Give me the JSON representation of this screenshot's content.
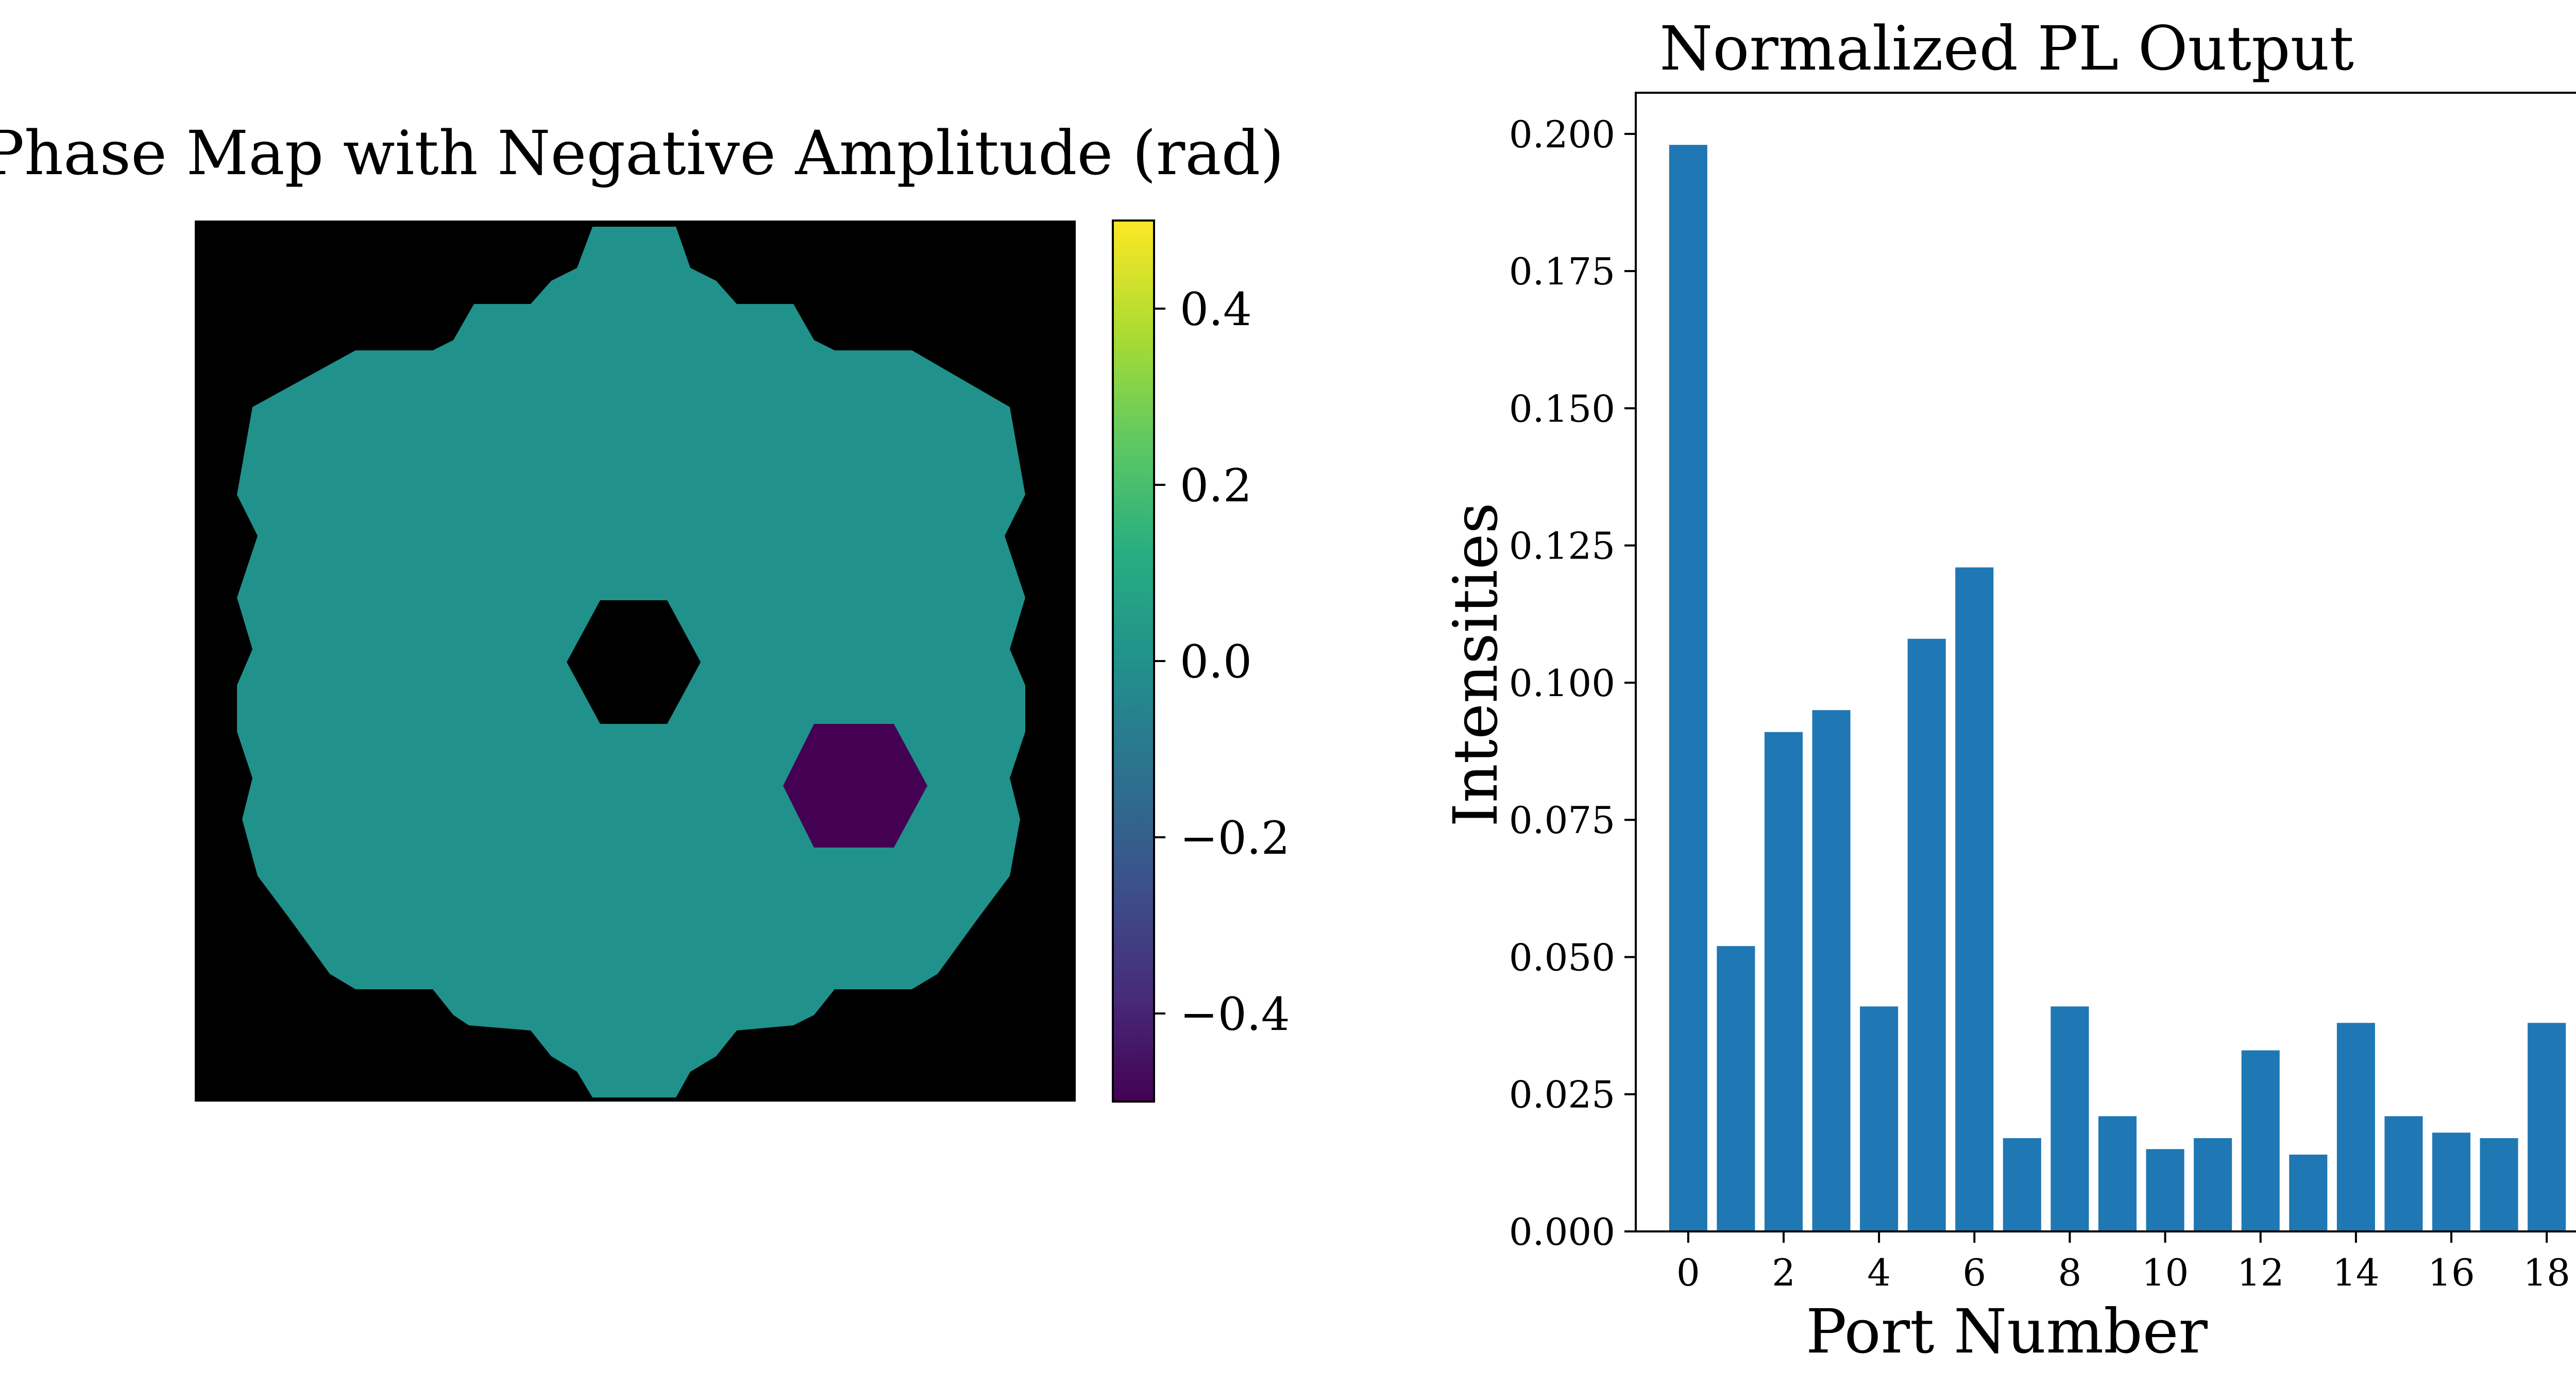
{
  "colors": {
    "background": "#ffffff",
    "mask": "#000000",
    "pupil": "#21918c",
    "segment_shifted": "#440154",
    "bar": "#1f77b4",
    "axes": "#000000"
  },
  "chart_data": [
    {
      "type": "heatmap",
      "title": "Phase Map with Negative Amplitude (rad)",
      "description_values": {
        "background_phase": 0.0,
        "shifted_segment_phase": -0.5
      },
      "colormap": "viridis",
      "colorbar": {
        "range": [
          -0.5,
          0.5
        ],
        "tick_values": [
          -0.4,
          -0.2,
          0.0,
          0.2,
          0.4
        ],
        "tick_labels": [
          "−0.4",
          "−0.2",
          "0.0",
          "0.2",
          "0.4"
        ]
      },
      "axes_visible": false
    },
    {
      "type": "bar",
      "title": "Normalized PL Output",
      "xlabel": "Port Number",
      "ylabel": "Intensities",
      "categories": [
        0,
        1,
        2,
        3,
        4,
        5,
        6,
        7,
        8,
        9,
        10,
        11,
        12,
        13,
        14,
        15,
        16,
        17,
        18
      ],
      "values": [
        0.198,
        0.052,
        0.091,
        0.095,
        0.041,
        0.108,
        0.121,
        0.017,
        0.041,
        0.021,
        0.015,
        0.017,
        0.033,
        0.014,
        0.038,
        0.021,
        0.018,
        0.017,
        0.038
      ],
      "ylim": [
        0,
        0.2075
      ],
      "xlim": [
        -1.1,
        19.1
      ],
      "x_tick_values": [
        0,
        2,
        4,
        6,
        8,
        10,
        12,
        14,
        16,
        18
      ],
      "x_tick_labels": [
        "0",
        "2",
        "4",
        "6",
        "8",
        "10",
        "12",
        "14",
        "16",
        "18"
      ],
      "y_tick_values": [
        0,
        0.025,
        0.05,
        0.075,
        0.1,
        0.125,
        0.15,
        0.175,
        0.2
      ],
      "y_tick_labels": [
        "0.000",
        "0.025",
        "0.050",
        "0.075",
        "0.100",
        "0.125",
        "0.150",
        "0.175",
        "0.200"
      ],
      "grid": false,
      "legend": false
    }
  ]
}
